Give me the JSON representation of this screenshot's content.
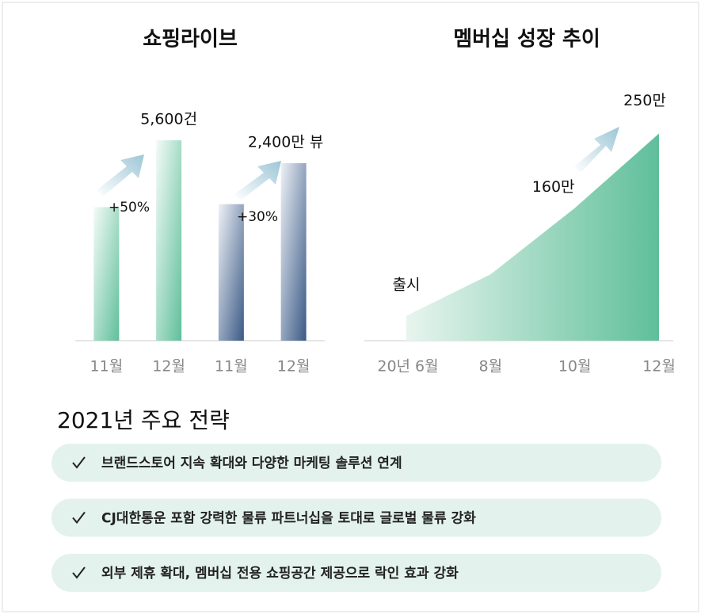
{
  "chart_data": [
    {
      "type": "bar",
      "title": "쇼핑라이브",
      "categories": [
        "11월",
        "12월",
        "11월",
        "12월"
      ],
      "series": [
        {
          "color": "#5fbf9a",
          "ylim": [
            0,
            6200
          ],
          "values": [
            3733,
            5600,
            null,
            null
          ],
          "value_labels": [
            null,
            "5,600건",
            null,
            null
          ]
        },
        {
          "color": "#3b5a86",
          "ylim": [
            0,
            3000
          ],
          "values": [
            null,
            null,
            1846,
            2400
          ],
          "value_labels": [
            null,
            null,
            null,
            "2,400만 뷰"
          ]
        }
      ],
      "annotations": [
        "+50%",
        "+30%"
      ]
    },
    {
      "type": "area",
      "title": "멤버십 성장 추이",
      "categories": [
        "20년 6월",
        "8월",
        "10월",
        "12월"
      ],
      "values": [
        30,
        80,
        160,
        250
      ],
      "value_labels": [
        null,
        null,
        "160만",
        "250만"
      ],
      "color": "#5fbf9a",
      "ylim": [
        0,
        260
      ],
      "annotations": [
        "출시"
      ]
    }
  ],
  "strategy": {
    "title": "2021년 주요 전략",
    "items": [
      "브랜드스토어 지속 확대와 다양한 마케팅 솔루션 연계",
      "CJ대한통운 포함 강력한 물류 파트너십을 토대로 글로벌 물류 강화",
      "외부 제휴 확대, 멤버십 전용 쇼핑공간 제공으로 락인 효과 강화"
    ]
  }
}
